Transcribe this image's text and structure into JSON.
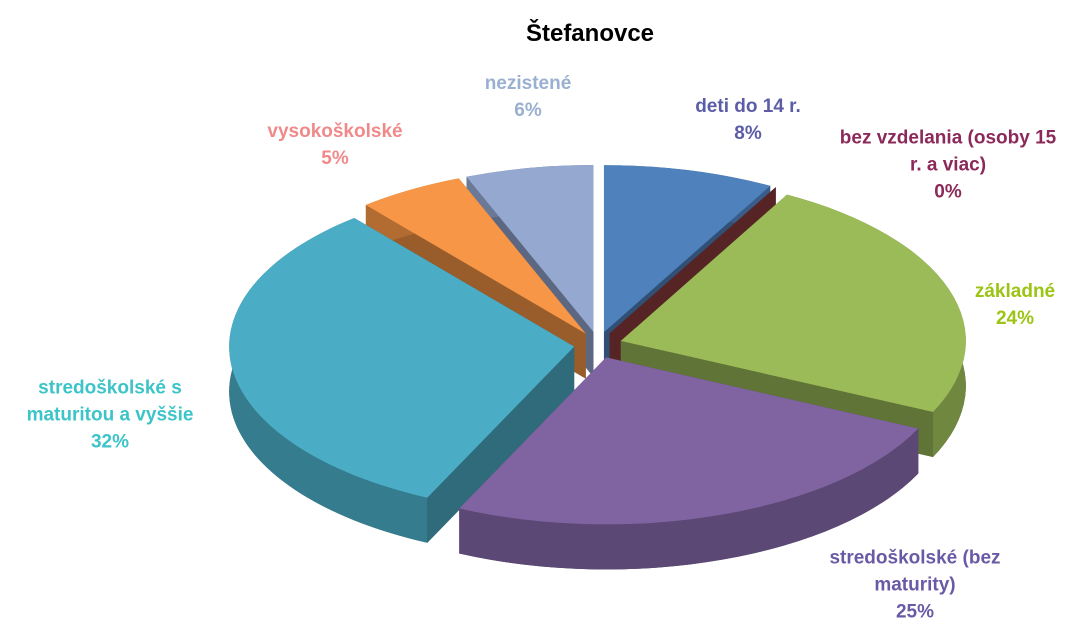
{
  "chart_data": {
    "type": "pie",
    "title": "Štefanovce",
    "categories": [
      "deti do 14 r.",
      "bez vzdelania (osoby 15 r. a viac)",
      "základné",
      "stredoškolské (bez maturity)",
      "stredoškolské s maturitou a vyššie",
      "vysokoškolské",
      "nezistené"
    ],
    "values": [
      8,
      0,
      24,
      25,
      32,
      5,
      6
    ],
    "value_labels": [
      "8%",
      "0%",
      "24%",
      "25%",
      "32%",
      "5%",
      "6%"
    ],
    "colors": [
      "#4f81bd",
      "#8b3a3a",
      "#9bbb59",
      "#8064a2",
      "#4bacc6",
      "#f79646",
      "#95a8d0"
    ],
    "label_colors": [
      "#5b5ea6",
      "#8b2a5a",
      "#9cc414",
      "#6a5aa5",
      "#3cc4c8",
      "#f08a8a",
      "#9ab0d0"
    ]
  }
}
